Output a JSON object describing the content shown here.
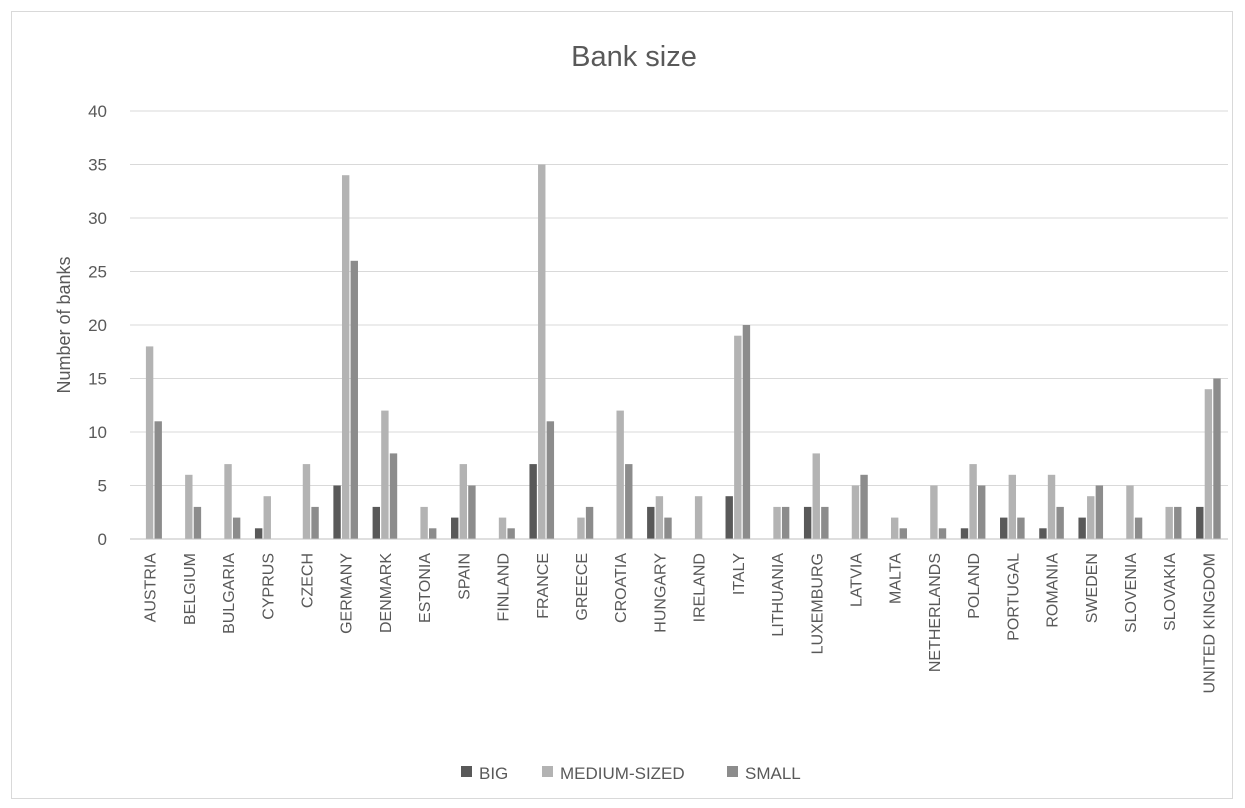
{
  "chart_data": {
    "type": "bar",
    "title": "Bank size",
    "xlabel": "",
    "ylabel": "Number of banks",
    "ylim": [
      0,
      40
    ],
    "yticks": [
      0,
      5,
      10,
      15,
      20,
      25,
      30,
      35,
      40
    ],
    "grid": true,
    "legend_position": "bottom",
    "categories": [
      "AUSTRIA",
      "BELGIUM",
      "BULGARIA",
      "CYPRUS",
      "CZECH",
      "GERMANY",
      "DENMARK",
      "ESTONIA",
      "SPAIN",
      "FINLAND",
      "FRANCE",
      "GREECE",
      "CROATIA",
      "HUNGARY",
      "IRELAND",
      "ITALY",
      "LITHUANIA",
      "LUXEMBURG",
      "LATVIA",
      "MALTA",
      "NETHERLANDS",
      "POLAND",
      "PORTUGAL",
      "ROMANIA",
      "SWEDEN",
      "SLOVENIA",
      "SLOVAKIA",
      "UNITED KINGDOM"
    ],
    "series": [
      {
        "name": "BIG",
        "color": "#595959",
        "values": [
          0,
          0,
          0,
          1,
          0,
          5,
          3,
          0,
          2,
          0,
          7,
          0,
          0,
          3,
          0,
          4,
          0,
          3,
          0,
          0,
          0,
          1,
          2,
          1,
          2,
          0,
          0,
          3
        ]
      },
      {
        "name": "MEDIUM-SIZED",
        "color": "#b3b3b3",
        "values": [
          18,
          6,
          7,
          4,
          7,
          34,
          12,
          3,
          7,
          2,
          35,
          2,
          12,
          4,
          4,
          19,
          3,
          8,
          5,
          2,
          5,
          7,
          6,
          6,
          4,
          5,
          3,
          14
        ]
      },
      {
        "name": "SMALL",
        "color": "#8c8c8c",
        "values": [
          11,
          3,
          2,
          0,
          3,
          26,
          8,
          1,
          5,
          1,
          11,
          3,
          7,
          2,
          0,
          20,
          3,
          3,
          6,
          1,
          1,
          5,
          2,
          3,
          5,
          2,
          3,
          15
        ]
      }
    ]
  }
}
